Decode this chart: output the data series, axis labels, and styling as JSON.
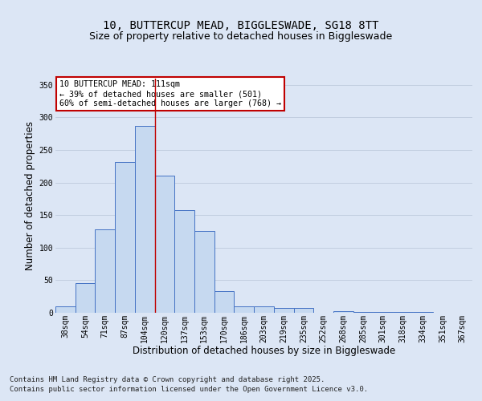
{
  "title_line1": "10, BUTTERCUP MEAD, BIGGLESWADE, SG18 8TT",
  "title_line2": "Size of property relative to detached houses in Biggleswade",
  "xlabel": "Distribution of detached houses by size in Biggleswade",
  "ylabel": "Number of detached properties",
  "categories": [
    "38sqm",
    "54sqm",
    "71sqm",
    "87sqm",
    "104sqm",
    "120sqm",
    "137sqm",
    "153sqm",
    "170sqm",
    "186sqm",
    "203sqm",
    "219sqm",
    "235sqm",
    "252sqm",
    "268sqm",
    "285sqm",
    "301sqm",
    "318sqm",
    "334sqm",
    "351sqm",
    "367sqm"
  ],
  "values": [
    10,
    46,
    128,
    232,
    287,
    211,
    158,
    125,
    33,
    10,
    10,
    8,
    7,
    0,
    2,
    1,
    1,
    1,
    1,
    0,
    0
  ],
  "bar_color": "#c6d9f0",
  "bar_edge_color": "#4472c4",
  "vline_x": 4.5,
  "vline_color": "#c00000",
  "annotation_text": "10 BUTTERCUP MEAD: 111sqm\n← 39% of detached houses are smaller (501)\n60% of semi-detached houses are larger (768) →",
  "annotation_box_color": "#ffffff",
  "annotation_box_edge": "#c00000",
  "ylim": [
    0,
    360
  ],
  "yticks": [
    0,
    50,
    100,
    150,
    200,
    250,
    300,
    350
  ],
  "footer_line1": "Contains HM Land Registry data © Crown copyright and database right 2025.",
  "footer_line2": "Contains public sector information licensed under the Open Government Licence v3.0.",
  "bg_color": "#dce6f5",
  "plot_bg_color": "#dce6f5",
  "title_fontsize": 10,
  "subtitle_fontsize": 9,
  "tick_fontsize": 7,
  "label_fontsize": 8.5,
  "footer_fontsize": 6.5
}
